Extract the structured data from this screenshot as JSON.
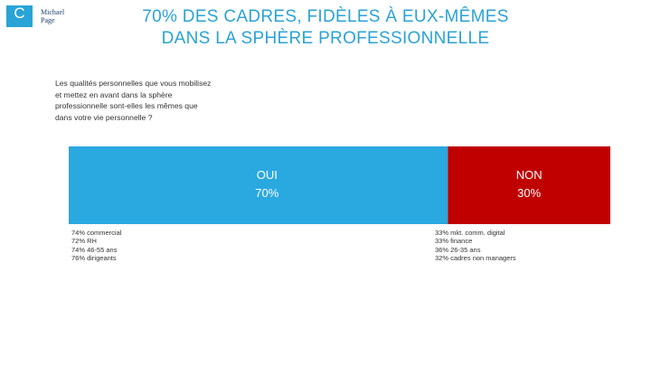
{
  "logo": {
    "letter": "C",
    "small_text": "",
    "brand_line1": "Michael",
    "brand_line2": "Page"
  },
  "title_line1": "70% DES CADRES, FIDÈLES À EUX-MÊMES",
  "title_line2": "DANS LA SPHÈRE PROFESSIONNELLE",
  "question": "Les qualités personnelles que vous mobilisez et mettez en avant dans la sphère professionnelle sont-elles les mêmes que dans votre vie personnelle ?",
  "colors": {
    "oui": "#2aa8e0",
    "non": "#c00000",
    "title": "#2aa3d6"
  },
  "chart_data": {
    "type": "bar",
    "orientation": "horizontal-stacked",
    "categories": [
      "OUI",
      "NON"
    ],
    "values": [
      70,
      30
    ],
    "labels": [
      "70%",
      "30%"
    ],
    "title": "",
    "xlabel": "",
    "ylabel": ""
  },
  "notes_oui": [
    "74% commercial",
    "72% RH",
    "74% 46-55 ans",
    "76% dirigeants"
  ],
  "notes_non": [
    "33% mkt. comm. digital",
    "33% finance",
    "36% 26-35 ans",
    "32% cadres non managers"
  ]
}
